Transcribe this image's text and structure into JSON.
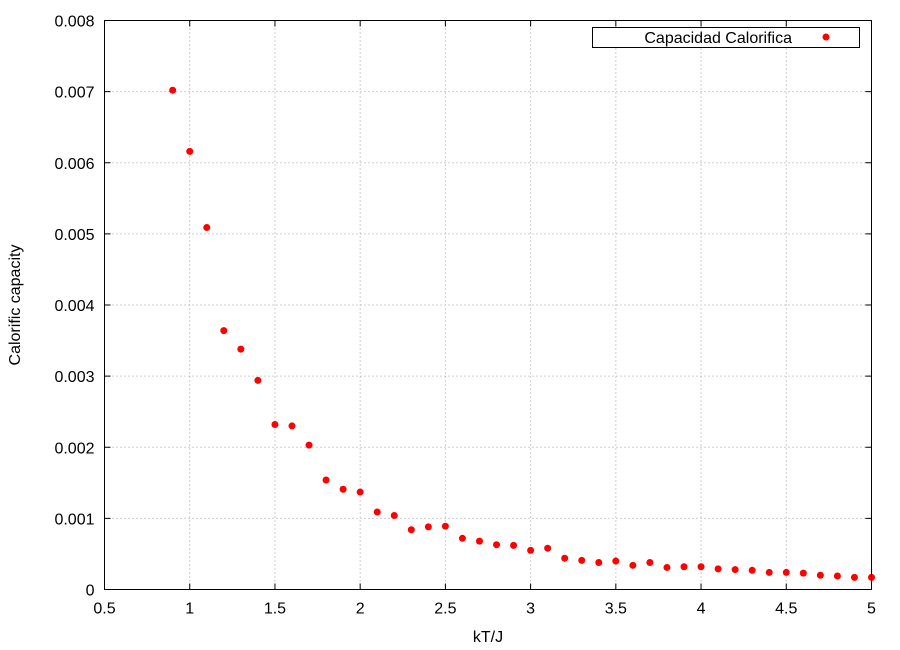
{
  "chart_data": {
    "type": "scatter",
    "xlabel": "kT/J",
    "ylabel": "Calorific capacity",
    "xlim": [
      0.5,
      5
    ],
    "ylim": [
      0,
      0.008
    ],
    "x_ticks": [
      "0.5",
      "1",
      "1.5",
      "2",
      "2.5",
      "3",
      "3.5",
      "4",
      "4.5",
      "5"
    ],
    "y_ticks": [
      "0",
      "0.001",
      "0.002",
      "0.003",
      "0.004",
      "0.005",
      "0.006",
      "0.007",
      "0.008"
    ],
    "grid": true,
    "legend": {
      "placement": "top-right"
    },
    "series": [
      {
        "name": "Capacidad Calorifica",
        "color": "#ff0000",
        "x": [
          0.9,
          1.0,
          1.1,
          1.2,
          1.3,
          1.4,
          1.5,
          1.6,
          1.7,
          1.8,
          1.9,
          2.0,
          2.1,
          2.2,
          2.3,
          2.4,
          2.5,
          2.6,
          2.7,
          2.8,
          2.9,
          3.0,
          3.1,
          3.2,
          3.3,
          3.4,
          3.5,
          3.6,
          3.7,
          3.8,
          3.9,
          4.0,
          4.1,
          4.2,
          4.3,
          4.4,
          4.5,
          4.6,
          4.7,
          4.8,
          4.9,
          5.0
        ],
        "y": [
          0.00702,
          0.00616,
          0.00509,
          0.00364,
          0.00338,
          0.00294,
          0.00232,
          0.0023,
          0.00203,
          0.00154,
          0.00141,
          0.00137,
          0.00109,
          0.00104,
          0.00084,
          0.00088,
          0.00089,
          0.00072,
          0.00068,
          0.00063,
          0.00062,
          0.00055,
          0.00058,
          0.00044,
          0.00041,
          0.00038,
          0.0004,
          0.00034,
          0.00038,
          0.00031,
          0.00032,
          0.00032,
          0.00029,
          0.00028,
          0.00027,
          0.00024,
          0.00024,
          0.00023,
          0.0002,
          0.00019,
          0.00017,
          0.00017
        ]
      }
    ]
  }
}
